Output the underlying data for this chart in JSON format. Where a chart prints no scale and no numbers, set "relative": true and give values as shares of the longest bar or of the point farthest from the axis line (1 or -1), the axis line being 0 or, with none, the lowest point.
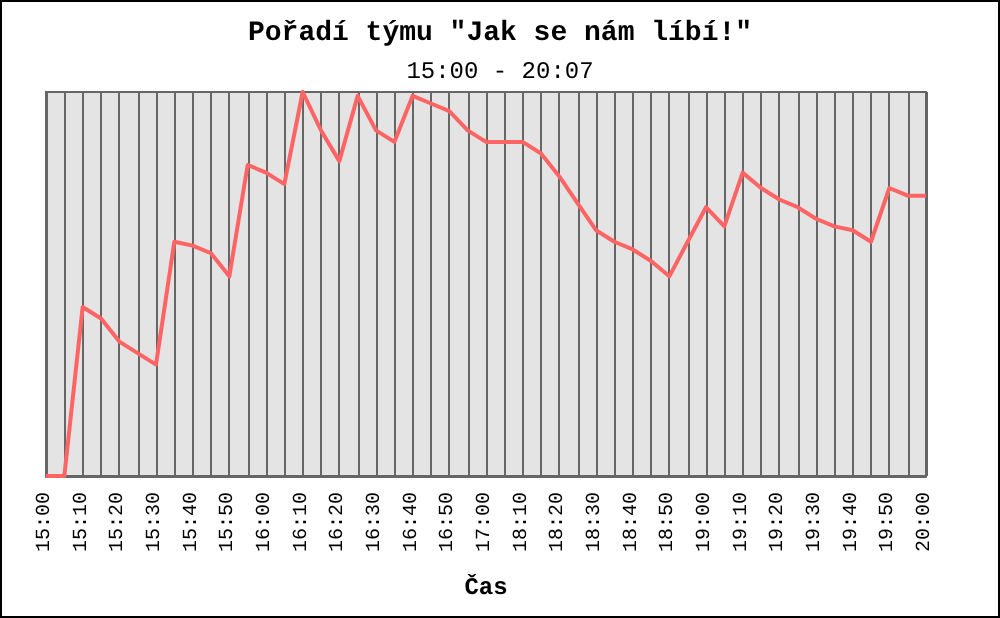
{
  "chart_data": {
    "type": "line",
    "title": "Pořadí týmu \"Jak se nám líbí!\"",
    "subtitle": "15:00 - 20:07",
    "xlabel": "Čas",
    "relative": true,
    "grid": "x",
    "marker": "none",
    "line_style": "solid",
    "categories": [
      "15:00",
      null,
      "15:10",
      null,
      "15:20",
      null,
      "15:30",
      null,
      "15:40",
      null,
      "15:50",
      null,
      "16:00",
      null,
      "16:10",
      null,
      "16:20",
      null,
      "16:30",
      null,
      "16:40",
      null,
      "16:50",
      null,
      "17:00",
      null,
      "18:10",
      null,
      "18:20",
      null,
      "18:30",
      null,
      "18:40",
      null,
      "18:50",
      null,
      "19:00",
      null,
      "19:10",
      null,
      "19:20",
      null,
      "19:30",
      null,
      "19:40",
      null,
      "19:50",
      null,
      "20:00"
    ],
    "series": [
      {
        "color": "#ff6464",
        "values": [
          0,
          0,
          0.44,
          0.41,
          0.35,
          0.32,
          0.29,
          0.61,
          0.6,
          0.58,
          0.52,
          0.81,
          0.79,
          0.76,
          1,
          0.9,
          0.82,
          0.99,
          0.9,
          0.87,
          0.99,
          0.97,
          0.95,
          0.9,
          0.87,
          0.87,
          0.87,
          0.84,
          0.78,
          0.71,
          0.64,
          0.61,
          0.59,
          0.56,
          0.52,
          0.61,
          0.7,
          0.65,
          0.79,
          0.75,
          0.72,
          0.7,
          0.67,
          0.65,
          0.64,
          0.61,
          0.75,
          0.73,
          0.73
        ]
      }
    ]
  }
}
